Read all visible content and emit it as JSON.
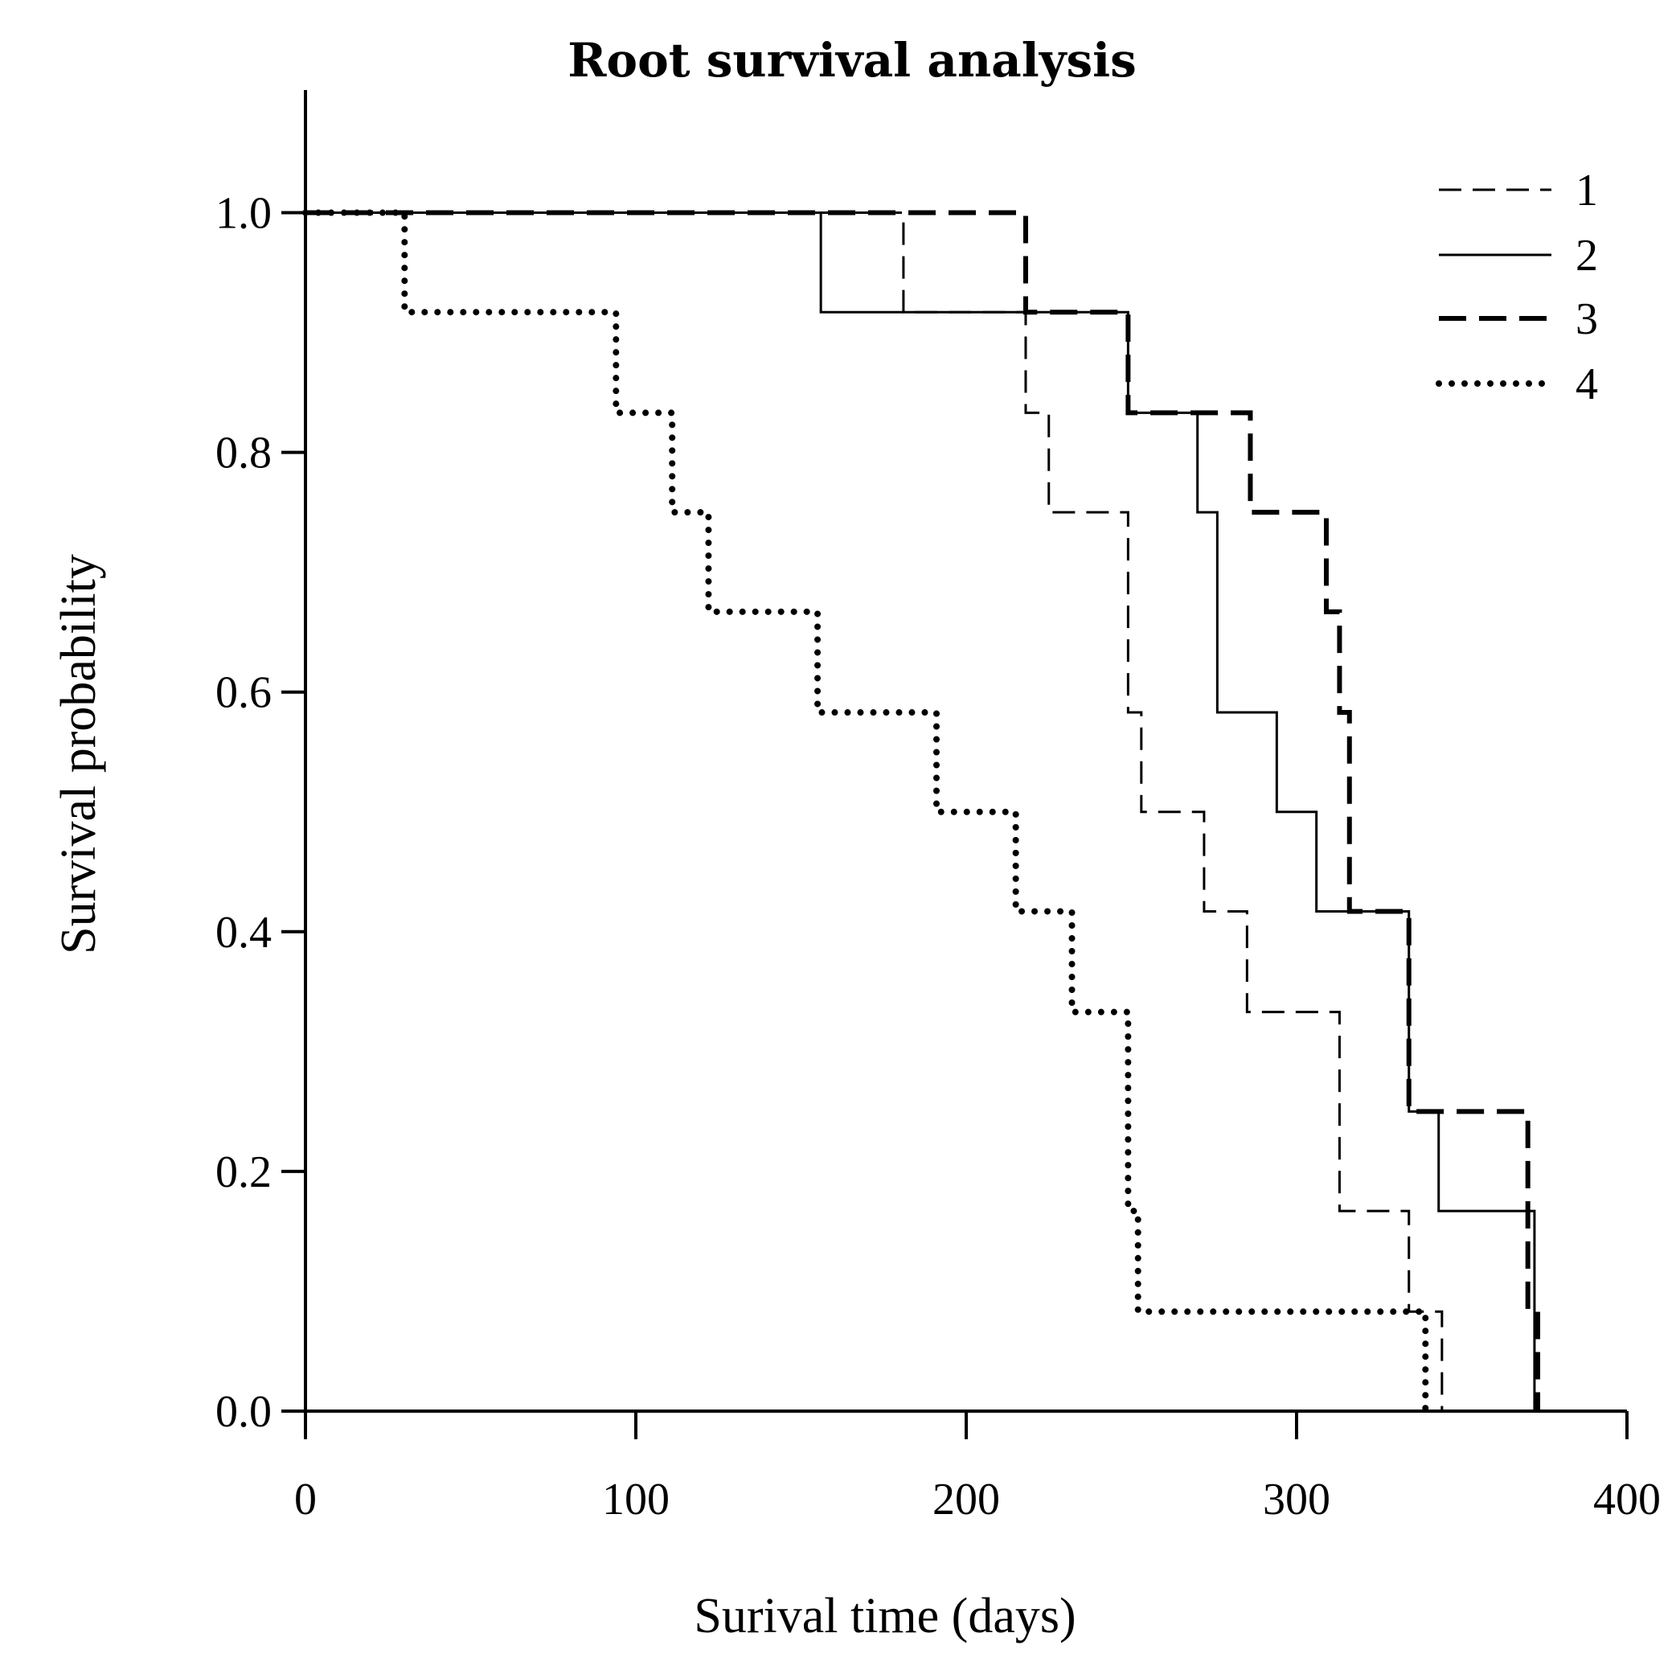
{
  "chart_data": {
    "type": "line",
    "step": true,
    "title": "Root survival analysis",
    "xlabel": "Surival time (days)",
    "ylabel": "Survival probability",
    "xlim": [
      0,
      400
    ],
    "ylim": [
      0,
      1.05
    ],
    "xticks": [
      0,
      100,
      200,
      300,
      400
    ],
    "xtick_labels": [
      "0",
      "100",
      "200",
      "300",
      "400"
    ],
    "yticks": [
      0,
      0.2,
      0.4,
      0.6,
      0.8,
      1.0
    ],
    "ytick_labels": [
      "0.0",
      "0.2",
      "0.4",
      "0.6",
      "0.8",
      "1.0"
    ],
    "grid": false,
    "legend_position": "top-right",
    "series": [
      {
        "name": "1",
        "style": "dashed",
        "x": [
          0,
          181,
          218,
          225,
          249,
          253,
          272,
          285,
          313,
          334,
          344
        ],
        "y": [
          1.0,
          0.917,
          0.833,
          0.75,
          0.583,
          0.5,
          0.417,
          0.333,
          0.167,
          0.083,
          0.0
        ]
      },
      {
        "name": "2",
        "style": "solid",
        "x": [
          0,
          156,
          249,
          270,
          276,
          294,
          306,
          334,
          343,
          372,
          373
        ],
        "y": [
          1.0,
          0.917,
          0.833,
          0.75,
          0.583,
          0.5,
          0.417,
          0.25,
          0.167,
          0.0,
          0.0
        ]
      },
      {
        "name": "3",
        "style": "thick-dashed",
        "x": [
          0,
          218,
          249,
          286,
          309,
          313,
          316,
          334,
          370,
          373
        ],
        "y": [
          1.0,
          0.917,
          0.833,
          0.75,
          0.667,
          0.583,
          0.417,
          0.25,
          0.083,
          0.0
        ]
      },
      {
        "name": "4",
        "style": "dotted",
        "x": [
          0,
          30,
          94,
          111,
          122,
          155,
          191,
          215,
          232,
          249,
          252,
          339
        ],
        "y": [
          1.0,
          0.917,
          0.833,
          0.75,
          0.667,
          0.583,
          0.5,
          0.417,
          0.333,
          0.167,
          0.083,
          0.0
        ]
      }
    ]
  }
}
